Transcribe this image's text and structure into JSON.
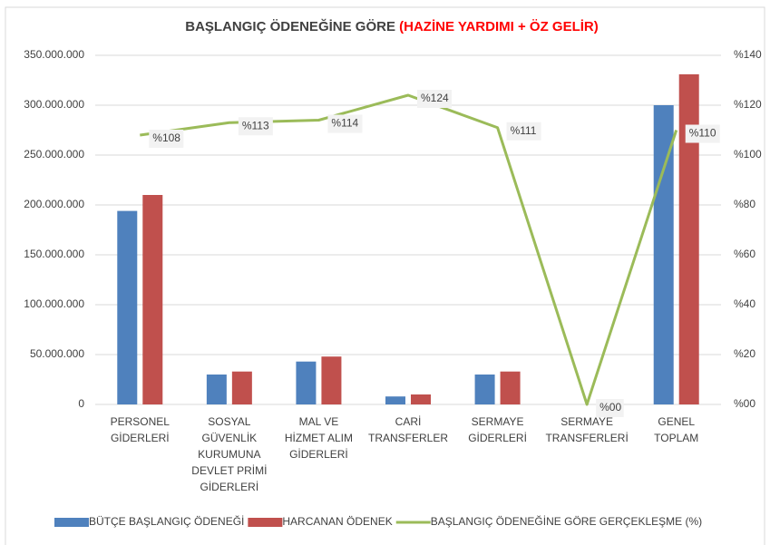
{
  "chart_data": {
    "type": "bar_line",
    "title": "BAŞLANGIÇ ÖDENEĞİNE GÖRE ",
    "title_highlight": "(HAZİNE YARDIMI + ÖZ GELİR)",
    "title_highlight_color": "#ff0000",
    "categories": [
      [
        "PERSONEL",
        "GİDERLERİ"
      ],
      [
        "SOSYAL",
        "GÜVENLİK",
        "KURUMUNA",
        "DEVLET PRİMİ",
        "GİDERLERİ"
      ],
      [
        "MAL VE",
        "HİZMET ALIM",
        "GİDERLERİ"
      ],
      [
        "CARİ",
        "TRANSFERLER"
      ],
      [
        "SERMAYE",
        "GİDERLERİ"
      ],
      [
        "SERMAYE",
        "TRANSFERLERİ"
      ],
      [
        "GENEL",
        "TOPLAM"
      ]
    ],
    "series": [
      {
        "name": "BÜTÇE BAŞLANGIÇ ÖDENEĞİ",
        "color": "#4f81bd",
        "type": "bar",
        "values": [
          194000000,
          30000000,
          43000000,
          8000000,
          30000000,
          0,
          300000000
        ]
      },
      {
        "name": "HARCANAN ÖDENEK",
        "color": "#c0504d",
        "type": "bar",
        "values": [
          210000000,
          33000000,
          48000000,
          10000000,
          33000000,
          0,
          331000000
        ]
      },
      {
        "name": "BAŞLANGIÇ ÖDENEĞİNE GÖRE GERÇEKLEŞME (%)",
        "color": "#9bbb59",
        "type": "line",
        "axis": "y2",
        "values": [
          108,
          113,
          114,
          124,
          111,
          0,
          110
        ],
        "value_labels": [
          "%108",
          "%113",
          "%114",
          "%124",
          "%111",
          "%00",
          "%110"
        ]
      }
    ],
    "ylim": [
      0,
      350000000
    ],
    "yticks": [
      0,
      {
        "value": 50000000,
        "label": "50.000.000"
      },
      {
        "value": 100000000,
        "label": "100.000.000"
      },
      {
        "value": 150000000,
        "label": "150.000.000"
      },
      {
        "value": 200000000,
        "label": "200.000.000"
      },
      {
        "value": 250000000,
        "label": "250.000.000"
      },
      {
        "value": 300000000,
        "label": "300.000.000"
      },
      {
        "value": 350000000,
        "label": "350.000.000"
      }
    ],
    "y2lim": [
      0,
      140
    ],
    "y2ticks": [
      {
        "value": 0,
        "label": "%00"
      },
      {
        "value": 20,
        "label": "%20"
      },
      {
        "value": 40,
        "label": "%40"
      },
      {
        "value": 60,
        "label": "%60"
      },
      {
        "value": 80,
        "label": "%80"
      },
      {
        "value": 100,
        "label": "%100"
      },
      {
        "value": 120,
        "label": "%120"
      },
      {
        "value": 140,
        "label": "%140"
      }
    ],
    "legend": "bottom"
  }
}
